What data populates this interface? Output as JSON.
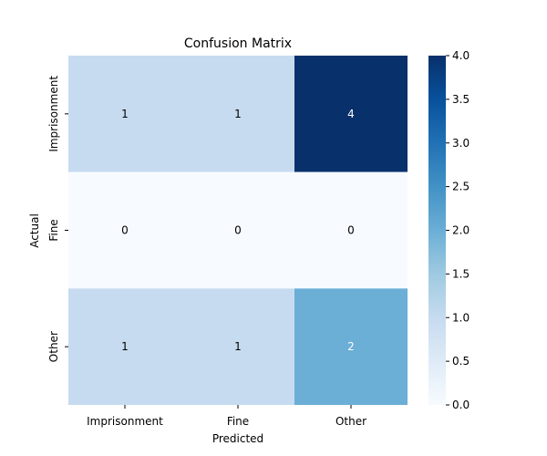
{
  "chart_data": {
    "type": "heatmap",
    "title": "Confusion Matrix",
    "xlabel": "Predicted",
    "ylabel": "Actual",
    "x_categories": [
      "Imprisonment",
      "Fine",
      "Other"
    ],
    "y_categories": [
      "Imprisonment",
      "Fine",
      "Other"
    ],
    "values": [
      [
        1,
        1,
        4
      ],
      [
        0,
        0,
        0
      ],
      [
        1,
        1,
        2
      ]
    ],
    "annotations": [
      [
        "1",
        "1",
        "4"
      ],
      [
        "0",
        "0",
        "0"
      ],
      [
        "1",
        "1",
        "2"
      ]
    ],
    "colormap": "Blues",
    "vmin": 0,
    "vmax": 4,
    "colorbar_ticks": [
      "0.0",
      "0.5",
      "1.0",
      "1.5",
      "2.0",
      "2.5",
      "3.0",
      "3.5",
      "4.0"
    ],
    "legend_position": "right"
  }
}
